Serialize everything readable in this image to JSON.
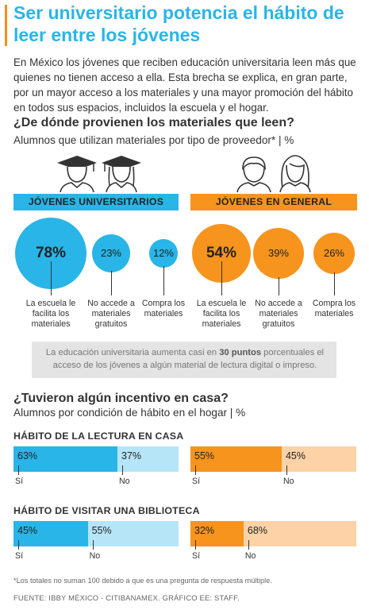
{
  "title": "Ser universitario potencia el hábito de leer entre los jóvenes",
  "intro": "En México los jóvenes que reciben educación universitaria leen más que quienes no tienen acceso a ella. Esta brecha se explica, en gran parte, por un mayor acceso a los materiales y una mayor promoción del hábito en todos sus espacios, incluidos la escuela y el hogar.",
  "section1": {
    "question": "¿De dónde provienen los materiales que leen?",
    "subtitle": "Alumnos que utilizan materiales por tipo de proveedor* | %"
  },
  "section2": {
    "question": "¿Tuvieron algún incentivo en casa?",
    "subtitle": "Alumnos por condición de hábito en el hogar | %"
  },
  "note": {
    "part1": "La educación universitaria aumenta casi en ",
    "bold": "30 puntos",
    "part2": " porcentuales el acceso de los jóvenes a algún material de lectura digital o impreso."
  },
  "footnote": "*Los totales no suman 100 debido a que es una pregunta de respuesta múltiple.",
  "source": "FUENTE: IBBY MÉXICO - CITIBANAMEX. GRÁFICO EE: STAFF.",
  "colors": {
    "blue": "#29b5e8",
    "blue_light": "#b7e5f8",
    "orange": "#f7941d",
    "orange_light": "#fcd2a6",
    "title": "#29b5e8"
  },
  "chart_data": [
    {
      "type": "bubble",
      "group": "JÓVENES UNIVERSITARIOS",
      "categories": [
        "La escuela le facilita los materiales",
        "No accede a materiales gratuitos",
        "Compra los materiales"
      ],
      "display": [
        "78%",
        "23%",
        "12%"
      ],
      "values": [
        78,
        23,
        12
      ],
      "unit": "%"
    },
    {
      "type": "bubble",
      "group": "JÓVENES EN GENERAL",
      "categories": [
        "La escuela le facilita los materiales",
        "No accede a materiales gratuitos",
        "Compra los materiales"
      ],
      "display": [
        "54%",
        "39%",
        "26%"
      ],
      "values": [
        54,
        39,
        26
      ],
      "unit": "%"
    },
    {
      "type": "stacked-bar",
      "title": "HÁBITO DE LA LECTURA EN CASA",
      "series": [
        {
          "group": "universitarios",
          "categories": [
            "Sí",
            "No"
          ],
          "display": [
            "63%",
            "37%"
          ],
          "values": [
            63,
            37
          ]
        },
        {
          "group": "general",
          "categories": [
            "Sí",
            "No"
          ],
          "display": [
            "55%",
            "45%"
          ],
          "values": [
            55,
            45
          ]
        }
      ]
    },
    {
      "type": "stacked-bar",
      "title": "HÁBITO DE VISITAR UNA BIBLIOTECA",
      "series": [
        {
          "group": "universitarios",
          "categories": [
            "Sí",
            "No"
          ],
          "display": [
            "45%",
            "55%"
          ],
          "values": [
            45,
            55
          ]
        },
        {
          "group": "general",
          "categories": [
            "Sí",
            "No"
          ],
          "display": [
            "32%",
            "68%"
          ],
          "values": [
            32,
            68
          ]
        }
      ]
    }
  ]
}
